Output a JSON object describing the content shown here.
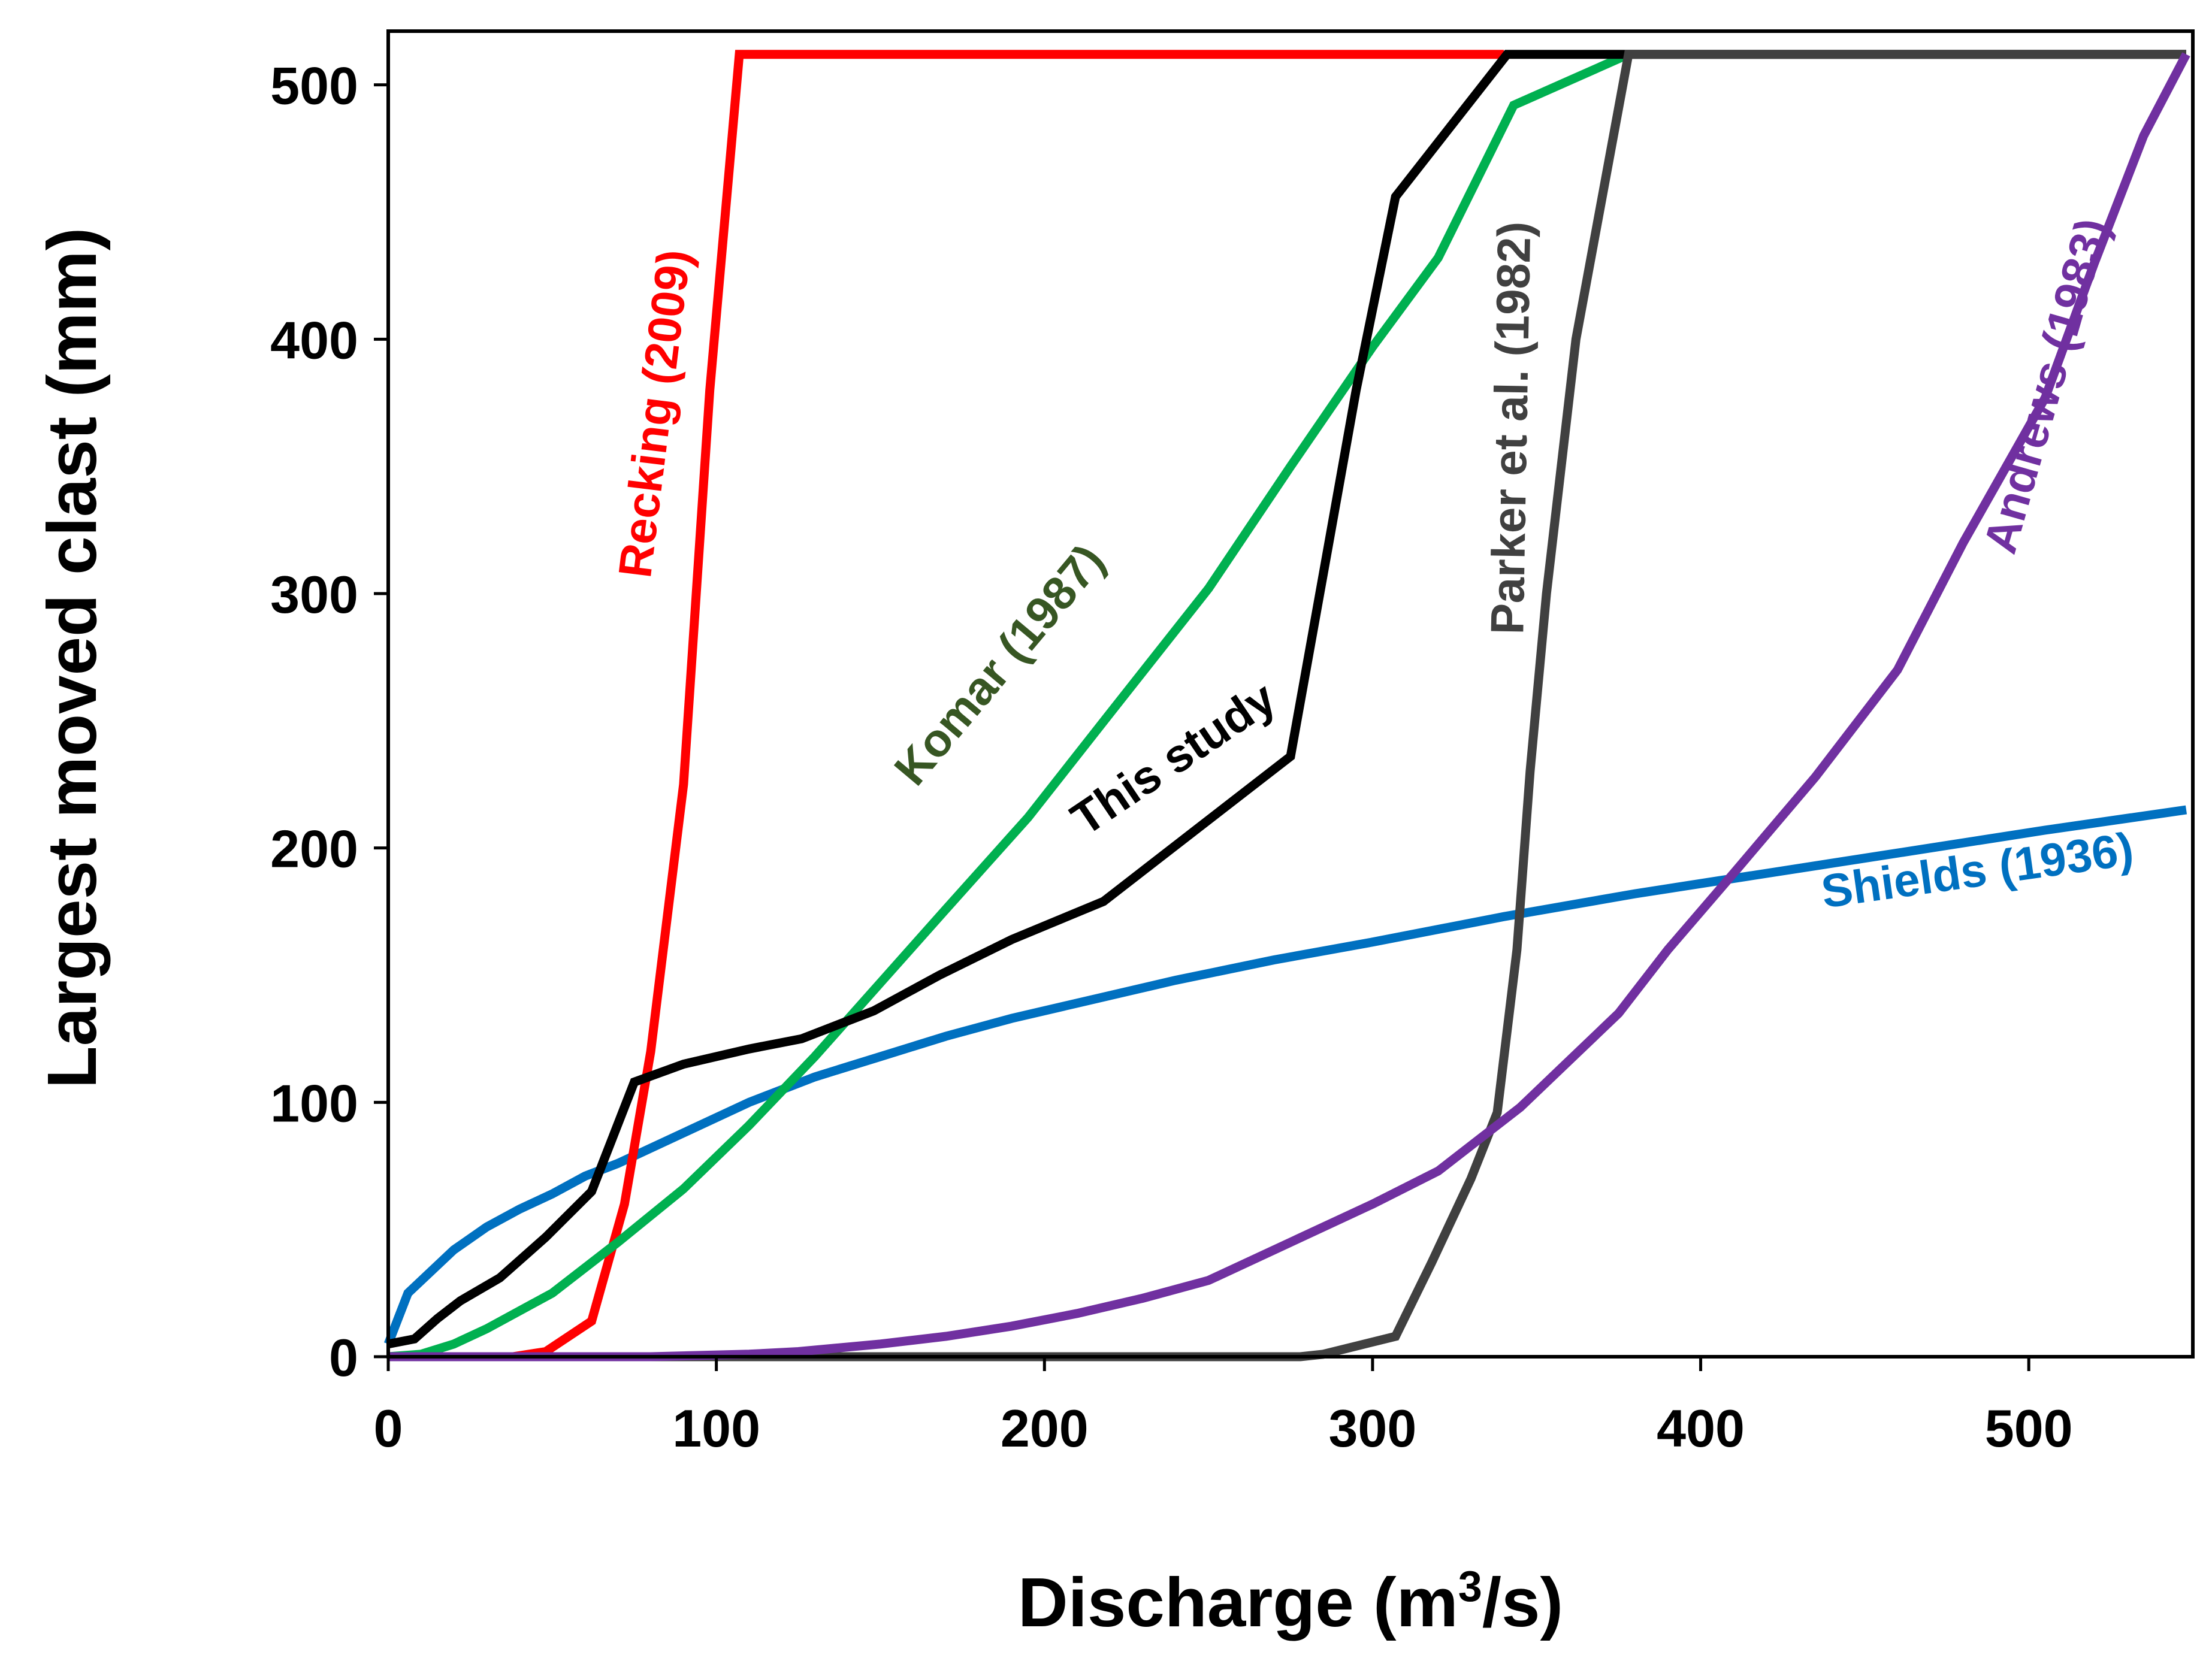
{
  "chart_data": {
    "type": "line",
    "title": "",
    "xlabel": {
      "main": "Discharge (m",
      "sup": "3",
      "tail": "/s)"
    },
    "ylabel": "Largest moved clast (mm)",
    "xlim": [
      0,
      550
    ],
    "ylim": [
      0,
      512
    ],
    "x_ticks": [
      0,
      100,
      200,
      300,
      400,
      500
    ],
    "y_ticks": [
      0,
      100,
      200,
      300,
      400,
      500
    ],
    "x_tick_labels": [
      "0",
      "100",
      "200",
      "300",
      "400",
      "500"
    ],
    "y_tick_labels": [
      "0",
      "100",
      "200",
      "300",
      "400",
      "500"
    ],
    "grid": false,
    "legend": "none",
    "series": [
      {
        "name": "Shields (1936)",
        "color": "#0070C0",
        "label": {
          "text": "Shields (1936)",
          "x": 485,
          "y": 185,
          "rotate": -8
        },
        "points": [
          [
            0,
            5
          ],
          [
            3,
            15
          ],
          [
            6,
            25
          ],
          [
            20,
            42
          ],
          [
            30,
            51
          ],
          [
            40,
            58
          ],
          [
            50,
            64
          ],
          [
            60,
            71
          ],
          [
            70,
            76
          ],
          [
            80,
            82
          ],
          [
            90,
            88
          ],
          [
            110,
            100
          ],
          [
            130,
            110
          ],
          [
            150,
            118
          ],
          [
            170,
            126
          ],
          [
            190,
            133
          ],
          [
            210,
            139
          ],
          [
            240,
            148
          ],
          [
            270,
            156
          ],
          [
            300,
            163
          ],
          [
            340,
            173
          ],
          [
            380,
            182
          ],
          [
            420,
            190
          ],
          [
            460,
            198
          ],
          [
            505,
            207
          ],
          [
            548,
            215
          ]
        ]
      },
      {
        "name": "Recking (2009)",
        "color": "#FF0000",
        "label": {
          "text": "Recking (2009)",
          "x": 86,
          "y": 370,
          "rotate": -83
        },
        "points": [
          [
            0,
            0
          ],
          [
            38,
            0
          ],
          [
            48,
            2
          ],
          [
            62,
            14
          ],
          [
            72,
            60
          ],
          [
            80,
            120
          ],
          [
            90,
            225
          ],
          [
            98,
            380
          ],
          [
            107,
            512
          ],
          [
            340,
            512
          ]
        ]
      },
      {
        "name": "Komar (1987)",
        "color": "#00B050",
        "label": {
          "text": "Komar (1987)",
          "x": 190,
          "y": 268,
          "rotate": -50
        },
        "labelColor": "#375623",
        "points": [
          [
            0,
            0
          ],
          [
            10,
            1
          ],
          [
            20,
            5
          ],
          [
            30,
            11
          ],
          [
            50,
            25
          ],
          [
            70,
            45
          ],
          [
            90,
            66
          ],
          [
            110,
            91
          ],
          [
            130,
            118
          ],
          [
            150,
            147
          ],
          [
            170,
            176
          ],
          [
            195,
            212
          ],
          [
            220,
            253
          ],
          [
            250,
            302
          ],
          [
            275,
            350
          ],
          [
            300,
            397
          ],
          [
            320,
            432
          ],
          [
            343,
            492
          ],
          [
            378,
            512
          ]
        ]
      },
      {
        "name": "This study",
        "color": "#000000",
        "label": {
          "text": "This study",
          "x": 242,
          "y": 230,
          "rotate": -34
        },
        "points": [
          [
            0,
            5
          ],
          [
            8,
            7
          ],
          [
            15,
            15
          ],
          [
            22,
            22
          ],
          [
            34,
            31
          ],
          [
            48,
            47
          ],
          [
            62,
            65
          ],
          [
            75,
            108
          ],
          [
            90,
            115
          ],
          [
            110,
            121
          ],
          [
            126,
            125
          ],
          [
            148,
            136
          ],
          [
            168,
            150
          ],
          [
            190,
            164
          ],
          [
            218,
            179
          ],
          [
            245,
            206
          ],
          [
            275,
            236
          ],
          [
            286,
            315
          ],
          [
            295,
            380
          ],
          [
            307,
            456
          ],
          [
            341,
            512
          ],
          [
            548,
            512
          ]
        ]
      },
      {
        "name": "Parker et al. (1982)",
        "color": "#404040",
        "label": {
          "text": "Parker et al. (1982)",
          "x": 347,
          "y": 365,
          "rotate": -89
        },
        "points": [
          [
            0,
            0
          ],
          [
            278,
            0
          ],
          [
            285,
            1
          ],
          [
            307,
            8
          ],
          [
            318,
            37
          ],
          [
            330,
            70
          ],
          [
            338,
            96
          ],
          [
            344,
            160
          ],
          [
            348,
            230
          ],
          [
            353,
            300
          ],
          [
            362,
            400
          ],
          [
            372,
            470
          ],
          [
            378,
            512
          ],
          [
            548,
            512
          ]
        ]
      },
      {
        "name": "Andrews (1983)",
        "color": "#7030A0",
        "label": {
          "text": "Andrews (1983)",
          "x": 510,
          "y": 380,
          "rotate": -74
        },
        "points": [
          [
            0,
            0
          ],
          [
            80,
            0
          ],
          [
            110,
            1
          ],
          [
            125,
            2
          ],
          [
            150,
            5
          ],
          [
            170,
            8
          ],
          [
            190,
            12
          ],
          [
            210,
            17
          ],
          [
            230,
            23
          ],
          [
            250,
            30
          ],
          [
            275,
            45
          ],
          [
            300,
            60
          ],
          [
            320,
            73
          ],
          [
            345,
            98
          ],
          [
            375,
            135
          ],
          [
            390,
            160
          ],
          [
            410,
            190
          ],
          [
            435,
            228
          ],
          [
            460,
            270
          ],
          [
            480,
            320
          ],
          [
            505,
            377
          ],
          [
            520,
            430
          ],
          [
            535,
            480
          ],
          [
            548,
            512
          ]
        ]
      }
    ]
  }
}
